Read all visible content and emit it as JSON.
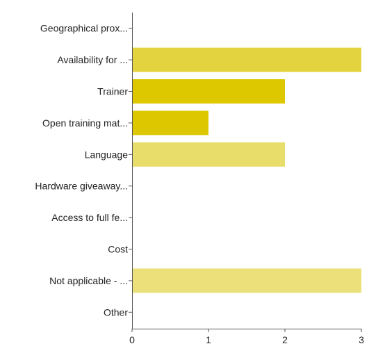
{
  "chart_data": {
    "type": "bar",
    "orientation": "horizontal",
    "categories": [
      "Geographical prox...",
      "Availability for ...",
      "Trainer",
      "Open training mat...",
      "Language",
      "Hardware giveaway...",
      "Access to full fe...",
      "Cost",
      "Not applicable - ...",
      "Other"
    ],
    "values": [
      0,
      3,
      2,
      1,
      2,
      0,
      0,
      0,
      3,
      0
    ],
    "colors": [
      "#e8d84a",
      "#e3d43f",
      "#ddc800",
      "#dcc700",
      "#e8dc6a",
      "#e8d84a",
      "#e8d84a",
      "#e8d84a",
      "#ebe07a",
      "#e8d84a"
    ],
    "xlim": [
      0,
      3
    ],
    "xticks": [
      "0",
      "1",
      "2",
      "3"
    ],
    "grid": false,
    "legend": "none",
    "title": "",
    "xlabel": "",
    "ylabel": ""
  }
}
